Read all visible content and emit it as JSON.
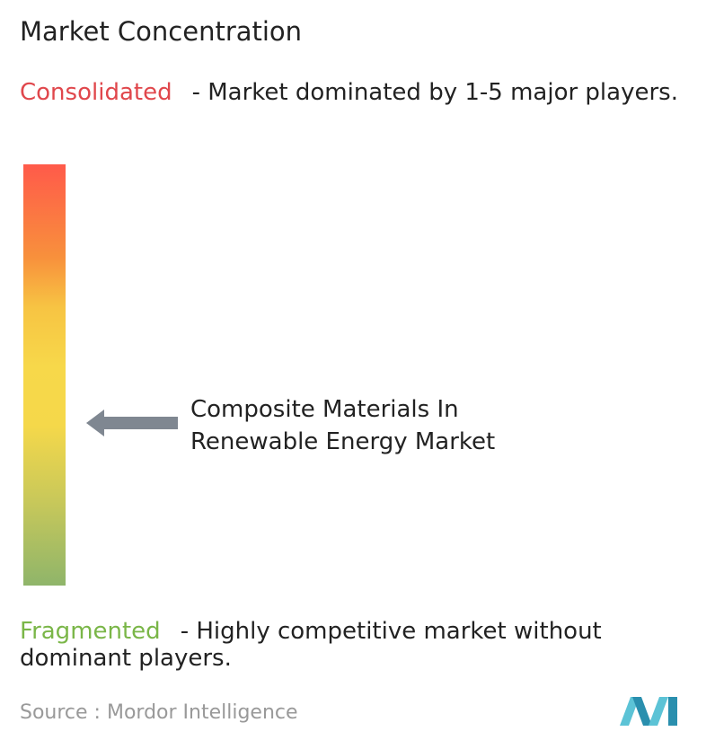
{
  "title": "Market Concentration",
  "consolidated": {
    "label": "Consolidated",
    "description": "- Market dominated by 1-5 major players."
  },
  "marker": {
    "label_lines": [
      "Composite Materials In",
      "Renewable Energy Market"
    ]
  },
  "fragmented": {
    "label": "Fragmented",
    "description": "- Highly competitive market without dominant players."
  },
  "source": {
    "prefix": "Source :",
    "name": "Mordor Intelligence"
  }
}
